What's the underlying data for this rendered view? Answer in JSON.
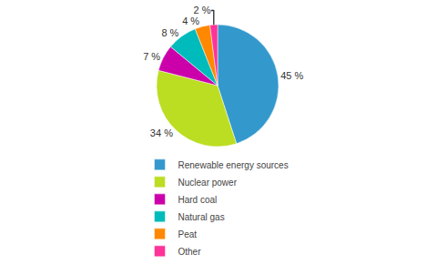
{
  "chart_data": {
    "type": "pie",
    "categories": [
      "Renewable energy sources",
      "Nuclear power",
      "Hard coal",
      "Natural gas",
      "Peat",
      "Other"
    ],
    "values": [
      45,
      34,
      7,
      8,
      4,
      2
    ],
    "value_labels": [
      "45 %",
      "34 %",
      "7 %",
      "8 %",
      "4 %",
      "2 %"
    ],
    "colors": [
      "#3399CC",
      "#BBDD22",
      "#CC00AA",
      "#00BBBB",
      "#FF8800",
      "#FF3399"
    ],
    "data_labels": true,
    "legend": "bottom"
  }
}
